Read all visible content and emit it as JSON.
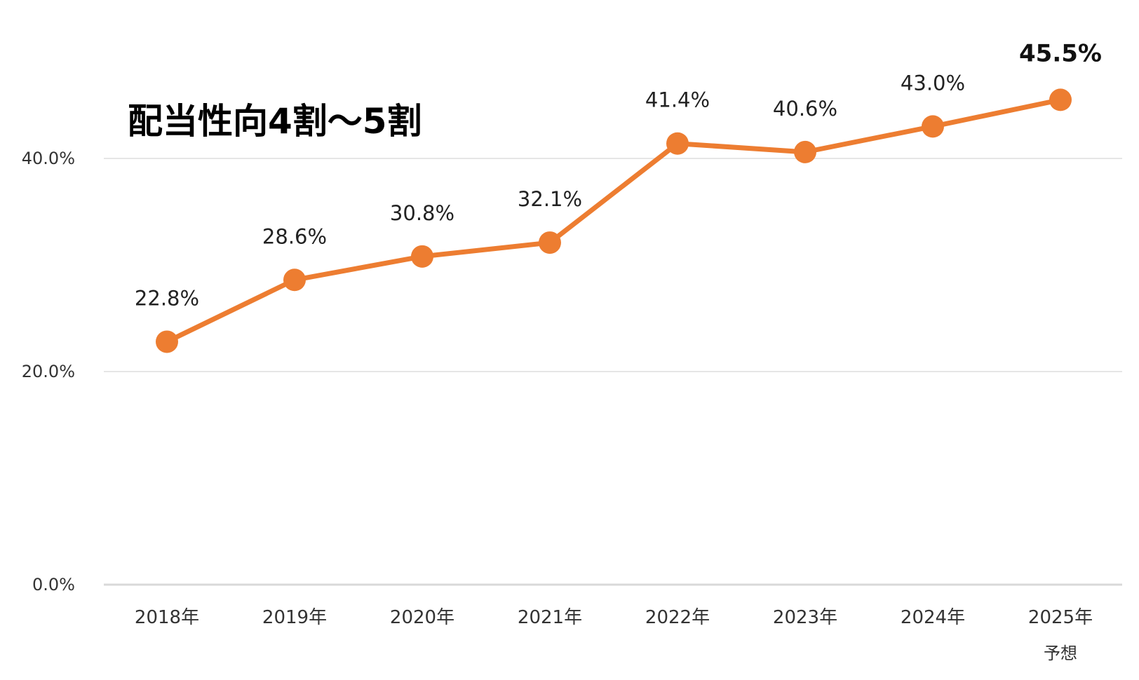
{
  "chart_data": {
    "type": "line",
    "annotation": "配当性向4割～5割",
    "categories": [
      "2018年",
      "2019年",
      "2020年",
      "2021年",
      "2022年",
      "2023年",
      "2024年",
      "2025年"
    ],
    "category_sublabels": [
      "",
      "",
      "",
      "",
      "",
      "",
      "",
      "予想"
    ],
    "values": [
      22.8,
      28.6,
      30.8,
      32.1,
      41.4,
      40.6,
      43.0,
      45.5
    ],
    "data_labels": [
      "22.8%",
      "28.6%",
      "30.8%",
      "32.1%",
      "41.4%",
      "40.6%",
      "43.0%",
      "45.5%"
    ],
    "highlight_index": 7,
    "yticks": [
      0,
      20,
      40
    ],
    "ytick_labels": [
      "0.0%",
      "20.0%",
      "40.0%"
    ],
    "ylim": [
      0,
      47
    ],
    "grid": true,
    "line_color": "#ED7D31",
    "marker_color": "#ED7D31"
  }
}
